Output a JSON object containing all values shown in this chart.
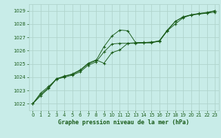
{
  "title": "Graphe pression niveau de la mer (hPa)",
  "background_color": "#c8ece8",
  "grid_color": "#b0d4cc",
  "line_color": "#1a5c1a",
  "marker_color": "#1a5c1a",
  "xlim": [
    -0.5,
    23.5
  ],
  "ylim": [
    1021.5,
    1029.5
  ],
  "xticks": [
    0,
    1,
    2,
    3,
    4,
    5,
    6,
    7,
    8,
    9,
    10,
    11,
    12,
    13,
    14,
    15,
    16,
    17,
    18,
    19,
    20,
    21,
    22,
    23
  ],
  "yticks": [
    1022,
    1023,
    1024,
    1025,
    1026,
    1027,
    1028,
    1029
  ],
  "series1": [
    [
      0,
      1022.0
    ],
    [
      1,
      1022.8
    ],
    [
      2,
      1023.3
    ],
    [
      3,
      1023.85
    ],
    [
      4,
      1024.1
    ],
    [
      5,
      1024.2
    ],
    [
      6,
      1024.5
    ],
    [
      7,
      1025.0
    ],
    [
      8,
      1025.25
    ],
    [
      9,
      1026.3
    ],
    [
      10,
      1027.1
    ],
    [
      11,
      1027.55
    ],
    [
      12,
      1027.5
    ],
    [
      13,
      1026.6
    ],
    [
      14,
      1026.6
    ],
    [
      15,
      1026.65
    ],
    [
      16,
      1026.7
    ],
    [
      17,
      1027.5
    ],
    [
      18,
      1028.2
    ],
    [
      19,
      1028.55
    ],
    [
      20,
      1028.7
    ],
    [
      21,
      1028.8
    ],
    [
      22,
      1028.88
    ],
    [
      23,
      1029.0
    ]
  ],
  "series2": [
    [
      0,
      1022.0
    ],
    [
      1,
      1022.7
    ],
    [
      2,
      1023.2
    ],
    [
      3,
      1023.9
    ],
    [
      4,
      1024.05
    ],
    [
      5,
      1024.25
    ],
    [
      6,
      1024.55
    ],
    [
      7,
      1025.05
    ],
    [
      8,
      1025.3
    ],
    [
      9,
      1025.05
    ],
    [
      10,
      1025.85
    ],
    [
      11,
      1026.05
    ],
    [
      12,
      1026.55
    ],
    [
      13,
      1026.6
    ],
    [
      14,
      1026.62
    ],
    [
      15,
      1026.62
    ],
    [
      16,
      1026.75
    ],
    [
      17,
      1027.55
    ],
    [
      18,
      1028.2
    ],
    [
      19,
      1028.52
    ],
    [
      20,
      1028.68
    ],
    [
      21,
      1028.78
    ],
    [
      22,
      1028.85
    ],
    [
      23,
      1029.0
    ]
  ],
  "series3": [
    [
      0,
      1022.0
    ],
    [
      1,
      1022.6
    ],
    [
      2,
      1023.15
    ],
    [
      3,
      1023.85
    ],
    [
      4,
      1024.0
    ],
    [
      5,
      1024.15
    ],
    [
      6,
      1024.4
    ],
    [
      7,
      1024.9
    ],
    [
      8,
      1025.15
    ],
    [
      9,
      1025.9
    ],
    [
      10,
      1026.5
    ],
    [
      11,
      1026.55
    ],
    [
      12,
      1026.55
    ],
    [
      13,
      1026.55
    ],
    [
      14,
      1026.58
    ],
    [
      15,
      1026.58
    ],
    [
      16,
      1026.72
    ],
    [
      17,
      1027.5
    ],
    [
      18,
      1028.0
    ],
    [
      19,
      1028.48
    ],
    [
      20,
      1028.68
    ],
    [
      21,
      1028.75
    ],
    [
      22,
      1028.82
    ],
    [
      23,
      1028.9
    ]
  ]
}
